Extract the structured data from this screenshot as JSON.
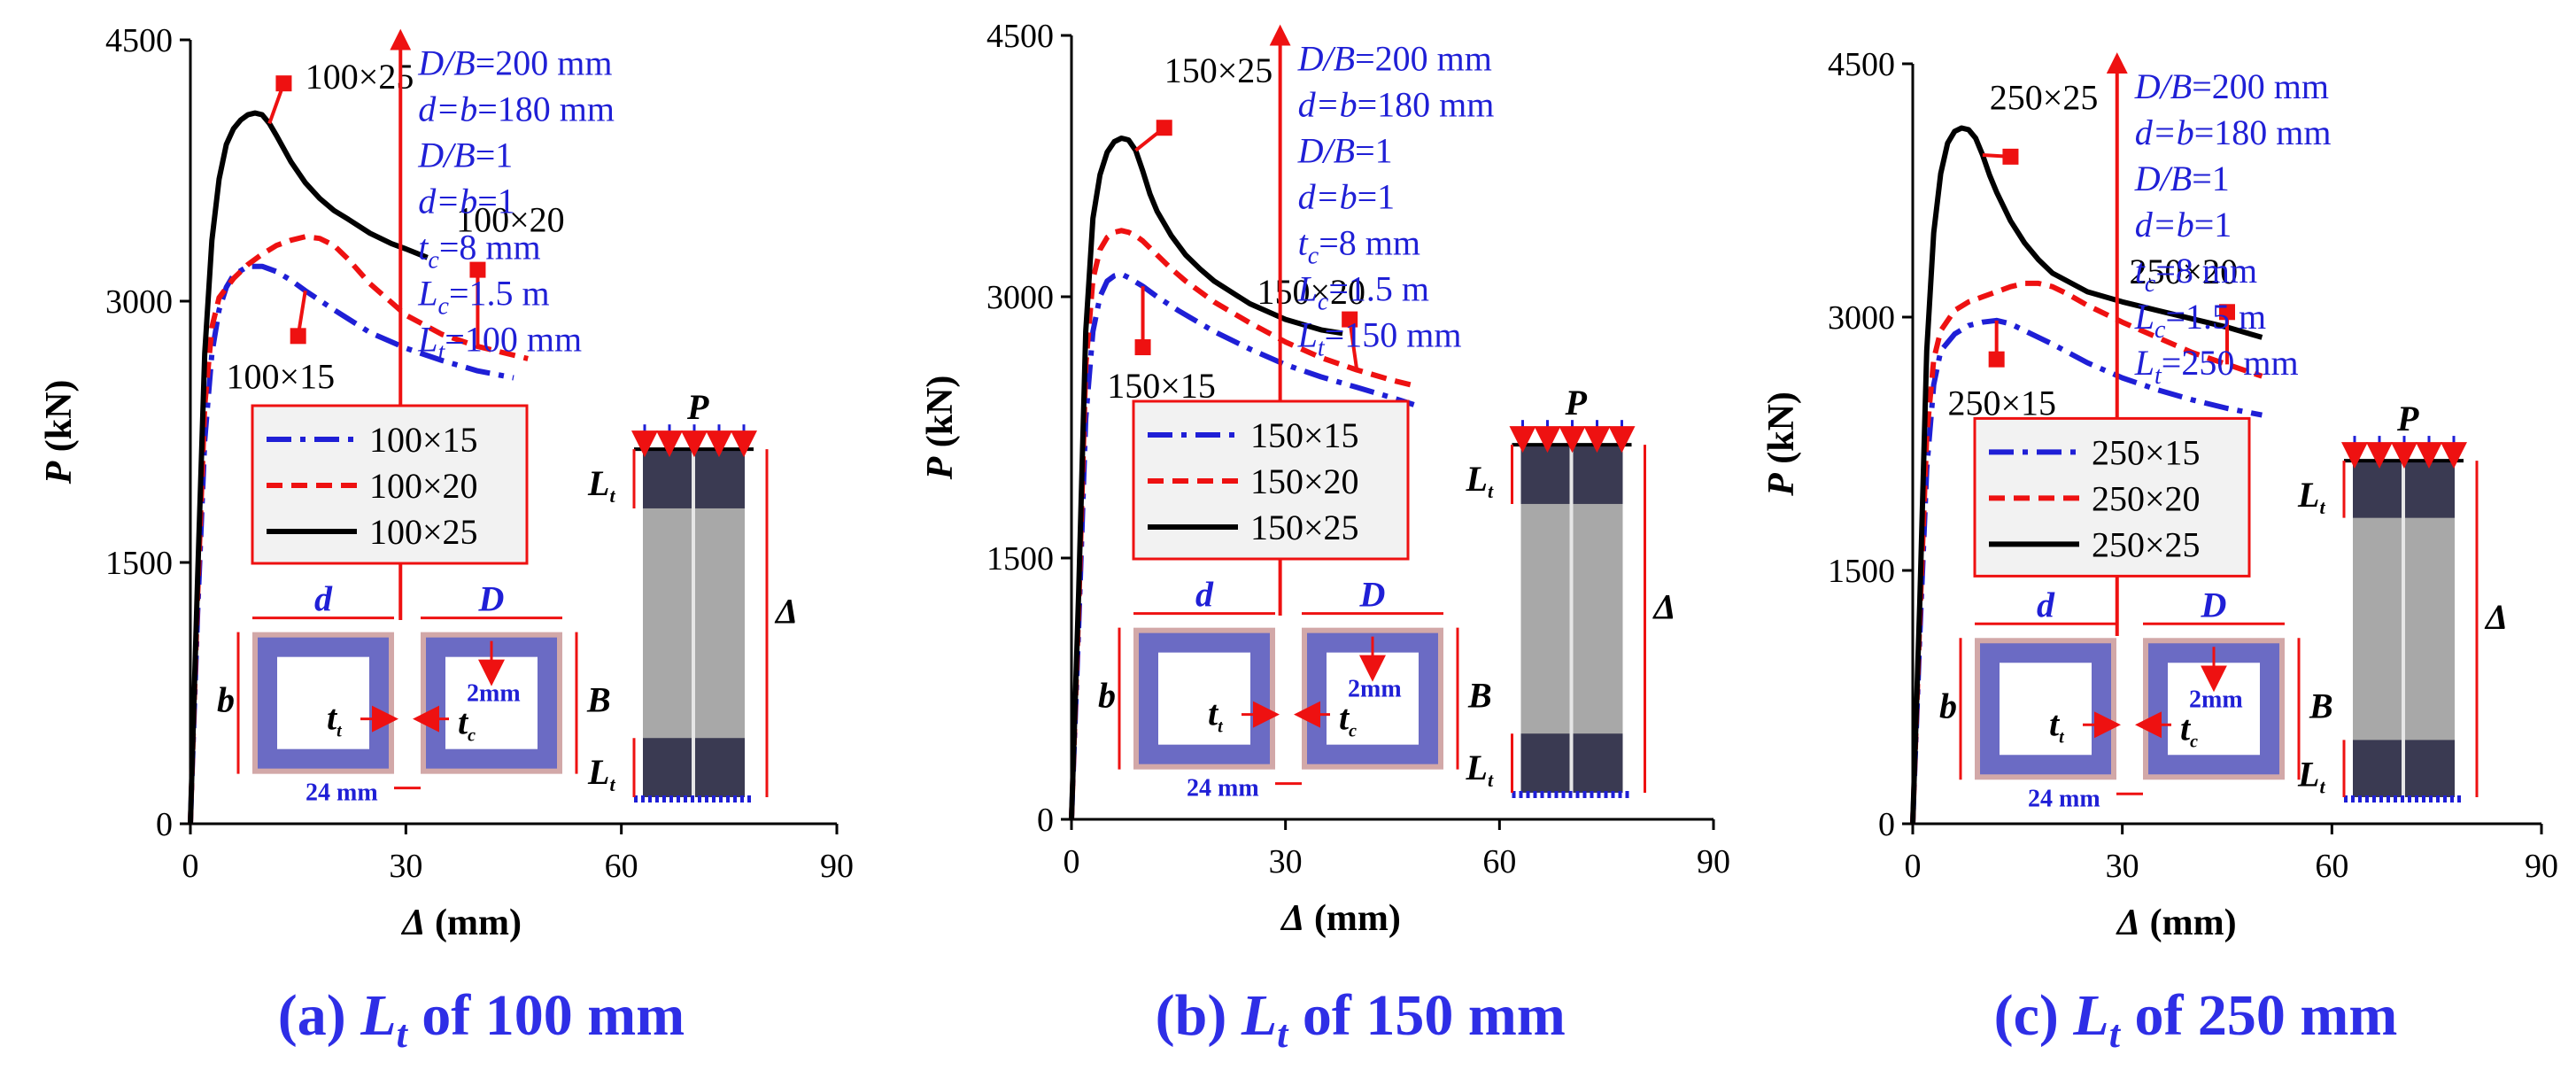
{
  "chart_data": [
    {
      "type": "line",
      "caption": "(a) L_t of 100 mm",
      "caption_prefix": "(a) ",
      "caption_sym": "L",
      "caption_sub": "t",
      "caption_suffix": " of 100 mm",
      "xlabel": "Δ (mm)",
      "xlabel_sym": "Δ",
      "xlabel_unit": " (mm)",
      "ylabel": "P (kN)",
      "ylabel_sym": "P",
      "ylabel_unit": " (kN)",
      "xlim": [
        0,
        90
      ],
      "ylim": [
        0,
        4500
      ],
      "xticks": [
        "0",
        "30",
        "60",
        "90"
      ],
      "yticks": [
        "0",
        "1500",
        "3000",
        "4500"
      ],
      "series": [
        {
          "name": "100×15",
          "style": "dashdot",
          "color": "#1f1fd6",
          "x": [
            0,
            1,
            2,
            3,
            4,
            5,
            6,
            8,
            10,
            12,
            14,
            16,
            20,
            25,
            30,
            35,
            40,
            45
          ],
          "y": [
            0,
            1200,
            2200,
            2700,
            2950,
            3080,
            3150,
            3200,
            3200,
            3170,
            3120,
            3060,
            2950,
            2820,
            2730,
            2660,
            2600,
            2560
          ]
        },
        {
          "name": "100×20",
          "style": "dashed",
          "color": "#ee1111",
          "x": [
            0,
            1,
            2,
            3,
            4,
            6,
            8,
            10,
            12,
            14,
            16,
            18,
            20,
            22,
            25,
            30,
            35,
            40,
            47
          ],
          "y": [
            0,
            1300,
            2400,
            2850,
            3020,
            3130,
            3210,
            3270,
            3320,
            3350,
            3370,
            3360,
            3320,
            3240,
            3100,
            2920,
            2810,
            2740,
            2670
          ]
        },
        {
          "name": "100×25",
          "style": "solid",
          "color": "#000000",
          "x": [
            0,
            1,
            2,
            3,
            4,
            5,
            6,
            7,
            8,
            9,
            10,
            11,
            12,
            14,
            16,
            18,
            20,
            22,
            25,
            28,
            30,
            33
          ],
          "y": [
            0,
            1400,
            2700,
            3350,
            3700,
            3900,
            3990,
            4040,
            4070,
            4080,
            4070,
            4020,
            3950,
            3800,
            3680,
            3590,
            3520,
            3470,
            3390,
            3330,
            3300,
            3250
          ]
        }
      ],
      "annotations": [
        "100×25",
        "100×20",
        "100×15"
      ],
      "legend": [
        "100×15",
        "100×20",
        "100×25"
      ],
      "params": [
        {
          "sym": "D/B",
          "sub": "",
          "val": "=200 mm"
        },
        {
          "sym": "d=b",
          "sub": "",
          "val": "=180 mm"
        },
        {
          "sym": "D/B",
          "sub": "",
          "val": "=1"
        },
        {
          "sym": "d=b",
          "sub": "",
          "val": "=1"
        },
        {
          "sym": "t",
          "sub": "c",
          "val": "=8 mm"
        },
        {
          "sym": "L",
          "sub": "c",
          "val": "=1.5 m"
        },
        {
          "sym": "L",
          "sub": "t",
          "val": "=100 mm"
        }
      ]
    },
    {
      "type": "line",
      "caption": "(b) L_t of 150 mm",
      "caption_prefix": "(b) ",
      "caption_sym": "L",
      "caption_sub": "t",
      "caption_suffix": " of 150 mm",
      "xlabel": "Δ (mm)",
      "xlabel_sym": "Δ",
      "xlabel_unit": " (mm)",
      "ylabel": "P (kN)",
      "ylabel_sym": "P",
      "ylabel_unit": " (kN)",
      "xlim": [
        0,
        90
      ],
      "ylim": [
        0,
        4500
      ],
      "xticks": [
        "0",
        "30",
        "60",
        "90"
      ],
      "yticks": [
        "0",
        "1500",
        "3000",
        "4500"
      ],
      "series": [
        {
          "name": "150×15",
          "style": "dashdot",
          "color": "#1f1fd6",
          "x": [
            0,
            1,
            2,
            3,
            4,
            5,
            6,
            7,
            8,
            10,
            12,
            15,
            20,
            25,
            30,
            35,
            40,
            45,
            48
          ],
          "y": [
            0,
            1100,
            2300,
            2800,
            3000,
            3090,
            3120,
            3130,
            3110,
            3060,
            3000,
            2920,
            2800,
            2700,
            2610,
            2540,
            2480,
            2420,
            2380
          ]
        },
        {
          "name": "150×20",
          "style": "dashed",
          "color": "#ee1111",
          "x": [
            0,
            1,
            2,
            3,
            4,
            5,
            6,
            7,
            8,
            9,
            10,
            12,
            14,
            16,
            18,
            20,
            25,
            30,
            35,
            40,
            45,
            48
          ],
          "y": [
            0,
            1200,
            2600,
            3100,
            3270,
            3340,
            3370,
            3380,
            3370,
            3350,
            3320,
            3240,
            3160,
            3090,
            3030,
            2970,
            2850,
            2740,
            2650,
            2580,
            2520,
            2490
          ]
        },
        {
          "name": "150×25",
          "style": "solid",
          "color": "#000000",
          "x": [
            0,
            1,
            2,
            3,
            4,
            5,
            6,
            7,
            8,
            9,
            10,
            11,
            12,
            14,
            16,
            18,
            20,
            25,
            30,
            35,
            38
          ],
          "y": [
            0,
            1300,
            2800,
            3450,
            3700,
            3830,
            3890,
            3910,
            3900,
            3840,
            3720,
            3590,
            3490,
            3350,
            3240,
            3160,
            3090,
            2960,
            2870,
            2810,
            2790
          ]
        }
      ],
      "annotations": [
        "150×25",
        "150×20",
        "150×15"
      ],
      "legend": [
        "150×15",
        "150×20",
        "150×25"
      ],
      "params": [
        {
          "sym": "D/B",
          "sub": "",
          "val": "=200 mm"
        },
        {
          "sym": "d=b",
          "sub": "",
          "val": "=180 mm"
        },
        {
          "sym": "D/B",
          "sub": "",
          "val": "=1"
        },
        {
          "sym": "d=b",
          "sub": "",
          "val": "=1"
        },
        {
          "sym": "t",
          "sub": "c",
          "val": "=8 mm"
        },
        {
          "sym": "L",
          "sub": "c",
          "val": "=1.5 m"
        },
        {
          "sym": "L",
          "sub": "t",
          "val": "=150 mm"
        }
      ]
    },
    {
      "type": "line",
      "caption": "(c) L_t of 250 mm",
      "caption_prefix": "(c) ",
      "caption_sym": "L",
      "caption_sub": "t",
      "caption_suffix": " of 250 mm",
      "xlabel": "Δ (mm)",
      "xlabel_sym": "Δ",
      "xlabel_unit": " (mm)",
      "ylabel": "P (kN)",
      "ylabel_sym": "P",
      "ylabel_unit": " (kN)",
      "xlim": [
        0,
        90
      ],
      "ylim": [
        0,
        4500
      ],
      "xticks": [
        "0",
        "30",
        "60",
        "90"
      ],
      "yticks": [
        "0",
        "1500",
        "3000",
        "4500"
      ],
      "series": [
        {
          "name": "250×15",
          "style": "dashdot",
          "color": "#1f1fd6",
          "x": [
            0,
            1,
            2,
            3,
            4,
            6,
            8,
            10,
            12,
            14,
            16,
            20,
            25,
            30,
            35,
            40,
            45,
            50
          ],
          "y": [
            0,
            1100,
            2100,
            2600,
            2800,
            2900,
            2950,
            2970,
            2980,
            2960,
            2920,
            2840,
            2730,
            2640,
            2570,
            2510,
            2460,
            2420
          ]
        },
        {
          "name": "250×20",
          "style": "dashed",
          "color": "#ee1111",
          "x": [
            0,
            1,
            2,
            3,
            4,
            6,
            8,
            10,
            12,
            14,
            16,
            18,
            20,
            22,
            25,
            30,
            35,
            40,
            45,
            50
          ],
          "y": [
            0,
            1200,
            2300,
            2750,
            2920,
            3040,
            3090,
            3120,
            3150,
            3180,
            3200,
            3200,
            3180,
            3140,
            3070,
            2970,
            2880,
            2790,
            2720,
            2650
          ]
        },
        {
          "name": "250×25",
          "style": "solid",
          "color": "#000000",
          "x": [
            0,
            1,
            2,
            3,
            4,
            5,
            6,
            7,
            8,
            9,
            10,
            11,
            12,
            14,
            16,
            18,
            20,
            25,
            30,
            35,
            40,
            45,
            50
          ],
          "y": [
            0,
            1300,
            2800,
            3500,
            3850,
            4030,
            4100,
            4120,
            4110,
            4060,
            3960,
            3840,
            3740,
            3570,
            3440,
            3340,
            3260,
            3150,
            3090,
            3040,
            2990,
            2940,
            2880
          ]
        }
      ],
      "annotations": [
        "250×25",
        "250×20",
        "250×15"
      ],
      "legend": [
        "250×15",
        "250×20",
        "250×25"
      ],
      "params": [
        {
          "sym": "D/B",
          "sub": "",
          "val": "=200 mm"
        },
        {
          "sym": "d=b",
          "sub": "",
          "val": "=180 mm"
        },
        {
          "sym": "D/B",
          "sub": "",
          "val": "=1"
        },
        {
          "sym": "d=b",
          "sub": "",
          "val": "=1"
        },
        {
          "sym": "t",
          "sub": "c",
          "val": "=8 mm"
        },
        {
          "sym": "L",
          "sub": "c",
          "val": "=1.5 m"
        },
        {
          "sym": "L",
          "sub": "t",
          "val": "=250 mm"
        }
      ]
    }
  ],
  "schematic": {
    "load_label": "P",
    "disp_label": "Δ",
    "tube_label": "L",
    "tube_label_sub": "t",
    "inner_width_label": "d",
    "inner_height_label": "b",
    "outer_width_label": "D",
    "outer_height_label": "B",
    "tube_thickness_label": "t",
    "tube_thickness_sub": "t",
    "column_thickness_label": "t",
    "column_thickness_sub": "c",
    "gap_label": "2mm",
    "spacing_label": "24 mm"
  },
  "colors": {
    "blue": "#1f1fd6",
    "red": "#ee1111",
    "section_fill": "#6b6bc4",
    "section_border": "#d2a8a8",
    "tube_dark": "#3a3a52",
    "column_grey": "#a8a8a8"
  }
}
